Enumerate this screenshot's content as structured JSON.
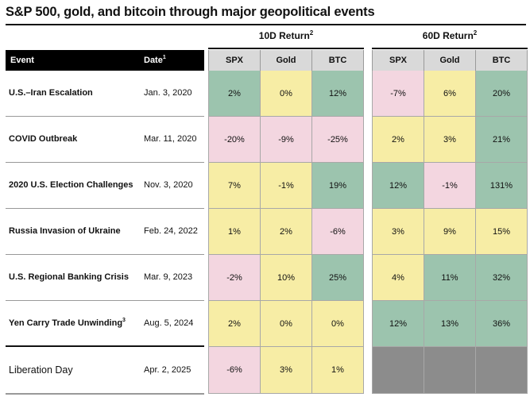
{
  "title": "S&P 500, gold, and bitcoin through major geopolitical events",
  "groups": {
    "ten_day": {
      "label": "10D Return",
      "note": "2"
    },
    "sixty_day": {
      "label": "60D Return",
      "note": "2"
    }
  },
  "headers": {
    "event": "Event",
    "date": "Date",
    "date_note": "1",
    "columns": [
      "SPX",
      "Gold",
      "BTC"
    ]
  },
  "rows": [
    {
      "event": "U.S.–Iran Escalation",
      "event_note": "",
      "date": "Jan. 3, 2020",
      "ten_day": [
        "2%",
        "0%",
        "12%"
      ],
      "sixty_day": [
        "-7%",
        "6%",
        "20%"
      ]
    },
    {
      "event": "COVID Outbreak",
      "event_note": "",
      "date": "Mar. 11, 2020",
      "ten_day": [
        "-20%",
        "-9%",
        "-25%"
      ],
      "sixty_day": [
        "2%",
        "3%",
        "21%"
      ]
    },
    {
      "event": "2020 U.S. Election Challenges",
      "event_note": "",
      "date": "Nov. 3, 2020",
      "ten_day": [
        "7%",
        "-1%",
        "19%"
      ],
      "sixty_day": [
        "12%",
        "-1%",
        "131%"
      ]
    },
    {
      "event": "Russia Invasion of Ukraine",
      "event_note": "",
      "date": "Feb. 24, 2022",
      "ten_day": [
        "1%",
        "2%",
        "-6%"
      ],
      "sixty_day": [
        "3%",
        "9%",
        "15%"
      ]
    },
    {
      "event": "U.S. Regional Banking Crisis",
      "event_note": "",
      "date": "Mar. 9, 2023",
      "ten_day": [
        "-2%",
        "10%",
        "25%"
      ],
      "sixty_day": [
        "4%",
        "11%",
        "32%"
      ]
    },
    {
      "event": "Yen Carry Trade Unwinding",
      "event_note": "3",
      "date": "Aug. 5, 2024",
      "ten_day": [
        "2%",
        "0%",
        "0%"
      ],
      "sixty_day": [
        "12%",
        "13%",
        "36%"
      ]
    },
    {
      "event": "Liberation Day",
      "event_note": "",
      "date": "Apr. 2, 2025",
      "ten_day": [
        "-6%",
        "3%",
        "1%"
      ],
      "sixty_day": [
        "",
        "",
        ""
      ]
    }
  ],
  "colors": {
    "green": "#9cc4ae",
    "yellow": "#f7eda5",
    "pink": "#f3d6e0",
    "gray": "#8c8c8c"
  },
  "cell_colors": {
    "ten_day": [
      [
        "green",
        "yellow",
        "green"
      ],
      [
        "pink",
        "pink",
        "pink"
      ],
      [
        "yellow",
        "yellow",
        "green"
      ],
      [
        "yellow",
        "yellow",
        "pink"
      ],
      [
        "pink",
        "yellow",
        "green"
      ],
      [
        "yellow",
        "yellow",
        "yellow"
      ],
      [
        "pink",
        "yellow",
        "yellow"
      ]
    ],
    "sixty_day": [
      [
        "pink",
        "yellow",
        "green"
      ],
      [
        "yellow",
        "yellow",
        "green"
      ],
      [
        "green",
        "pink",
        "green"
      ],
      [
        "yellow",
        "yellow",
        "yellow"
      ],
      [
        "yellow",
        "green",
        "green"
      ],
      [
        "green",
        "green",
        "green"
      ],
      [
        "gray",
        "gray",
        "gray"
      ]
    ]
  }
}
